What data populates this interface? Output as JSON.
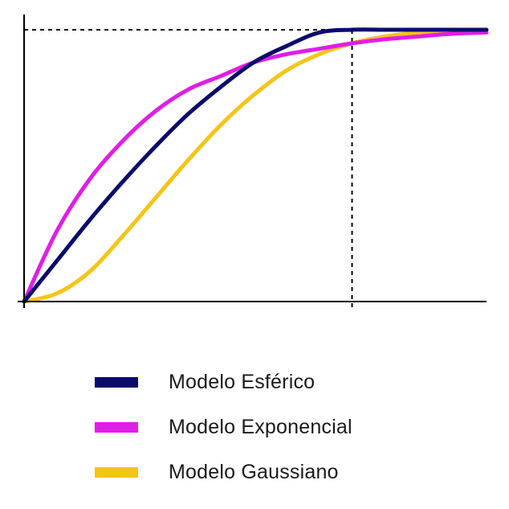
{
  "chart_data": {
    "type": "line",
    "title": "",
    "xlabel": "",
    "ylabel": "",
    "x_range": [
      0,
      1.41
    ],
    "y_range": [
      0,
      1
    ],
    "grid": false,
    "legend_position": "bottom",
    "reference_lines": {
      "sill": 1,
      "range": 1
    },
    "series": [
      {
        "name": "Modelo Esférico",
        "color": "#0b0b6b",
        "x": [
          0,
          0.1,
          0.2,
          0.3,
          0.4,
          0.5,
          0.6,
          0.7,
          0.8,
          0.9,
          1.0,
          1.1,
          1.2,
          1.3,
          1.41
        ],
        "y": [
          0,
          0.15,
          0.3,
          0.44,
          0.57,
          0.69,
          0.79,
          0.88,
          0.94,
          0.99,
          1.0,
          1.0,
          1.0,
          1.0,
          1.0
        ]
      },
      {
        "name": "Modelo Exponencial",
        "color": "#e01ee6",
        "x": [
          0,
          0.1,
          0.2,
          0.3,
          0.4,
          0.5,
          0.6,
          0.7,
          0.8,
          0.9,
          1.0,
          1.1,
          1.2,
          1.3,
          1.41
        ],
        "y": [
          0,
          0.26,
          0.45,
          0.59,
          0.7,
          0.78,
          0.83,
          0.88,
          0.91,
          0.93,
          0.95,
          0.965,
          0.975,
          0.985,
          0.99
        ]
      },
      {
        "name": "Modelo Gaussiano",
        "color": "#f5c518",
        "x": [
          0,
          0.1,
          0.2,
          0.3,
          0.4,
          0.5,
          0.6,
          0.7,
          0.8,
          0.9,
          1.0,
          1.1,
          1.2,
          1.3,
          1.41
        ],
        "y": [
          0,
          0.03,
          0.11,
          0.24,
          0.38,
          0.52,
          0.65,
          0.76,
          0.85,
          0.91,
          0.95,
          0.975,
          0.99,
          0.997,
          1.0
        ]
      }
    ]
  },
  "legend": {
    "items": [
      {
        "label": "Modelo Esférico",
        "color": "#0b0b6b"
      },
      {
        "label": "Modelo Exponencial",
        "color": "#e01ee6"
      },
      {
        "label": "Modelo Gaussiano",
        "color": "#f5c518"
      }
    ]
  }
}
